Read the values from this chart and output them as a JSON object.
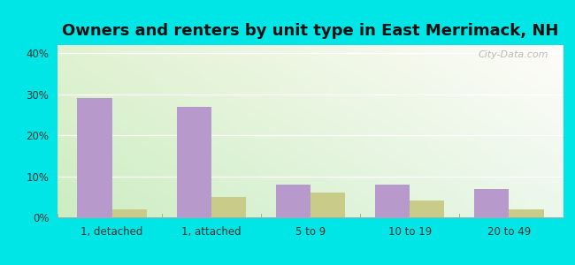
{
  "title": "Owners and renters by unit type in East Merrimack, NH",
  "categories": [
    "1, detached",
    "1, attached",
    "5 to 9",
    "10 to 19",
    "20 to 49"
  ],
  "owner_values": [
    29.0,
    27.0,
    8.0,
    8.0,
    7.0
  ],
  "renter_values": [
    2.0,
    5.0,
    6.0,
    4.0,
    2.0
  ],
  "owner_color": "#b899cc",
  "renter_color": "#c8cc88",
  "background_outer": "#00e5e5",
  "background_inner_topleft": "#e8f5e0",
  "background_inner_topright": "#f5fff5",
  "background_inner_bottom": "#d4eec8",
  "ylim": [
    0,
    42
  ],
  "yticks": [
    0,
    10,
    20,
    30,
    40
  ],
  "ytick_labels": [
    "0%",
    "10%",
    "20%",
    "30%",
    "40%"
  ],
  "bar_width": 0.35,
  "title_fontsize": 13,
  "watermark": "City-Data.com"
}
